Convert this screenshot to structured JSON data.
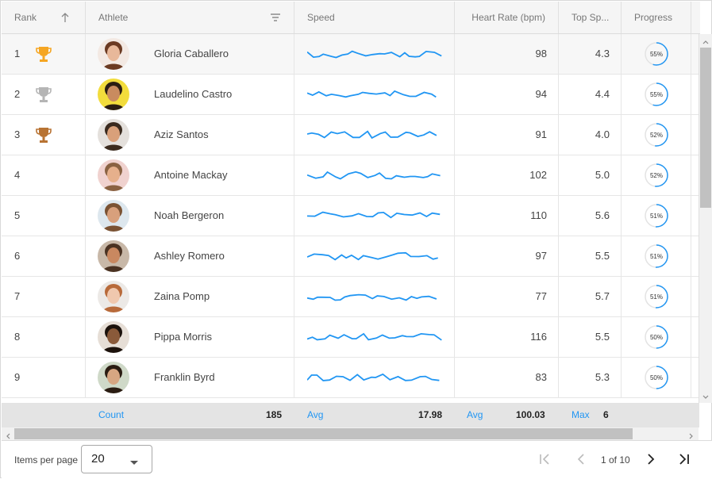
{
  "header": {
    "rank": "Rank",
    "athlete": "Athlete",
    "speed": "Speed",
    "heart_rate": "Heart Rate (bpm)",
    "top_speed": "Top Sp...",
    "progress": "Progress"
  },
  "rows": [
    {
      "rank": "1",
      "trophy": "gold",
      "name": "Gloria Caballero",
      "hr": "98",
      "top": "4.3",
      "progress": "55%",
      "pct": 55
    },
    {
      "rank": "2",
      "trophy": "silver",
      "name": "Laudelino Castro",
      "hr": "94",
      "top": "4.4",
      "progress": "55%",
      "pct": 55
    },
    {
      "rank": "3",
      "trophy": "bronze",
      "name": "Aziz Santos",
      "hr": "91",
      "top": "4.0",
      "progress": "52%",
      "pct": 52
    },
    {
      "rank": "4",
      "trophy": "",
      "name": "Antoine Mackay",
      "hr": "102",
      "top": "5.0",
      "progress": "52%",
      "pct": 52
    },
    {
      "rank": "5",
      "trophy": "",
      "name": "Noah Bergeron",
      "hr": "110",
      "top": "5.6",
      "progress": "51%",
      "pct": 51
    },
    {
      "rank": "6",
      "trophy": "",
      "name": "Ashley Romero",
      "hr": "97",
      "top": "5.5",
      "progress": "51%",
      "pct": 51
    },
    {
      "rank": "7",
      "trophy": "",
      "name": "Zaina Pomp",
      "hr": "77",
      "top": "5.7",
      "progress": "51%",
      "pct": 51
    },
    {
      "rank": "8",
      "trophy": "",
      "name": "Pippa Morris",
      "hr": "116",
      "top": "5.5",
      "progress": "50%",
      "pct": 50
    },
    {
      "rank": "9",
      "trophy": "",
      "name": "Franklin Byrd",
      "hr": "83",
      "top": "5.3",
      "progress": "50%",
      "pct": 50
    }
  ],
  "footer": {
    "count_label": "Count",
    "count_value": "185",
    "avg_label": "Avg",
    "avg_speed": "17.98",
    "avg_hr_label": "Avg",
    "avg_hr": "100.03",
    "max_label": "Max",
    "max_top": "6"
  },
  "pager": {
    "items_per_page_label": "Items per page",
    "items_per_page": "20",
    "page_info": "1 of 10"
  },
  "colors": {
    "accent": "#2196f3",
    "gold": "#f5a623",
    "silver": "#b5b5b5",
    "bronze": "#b87333"
  }
}
